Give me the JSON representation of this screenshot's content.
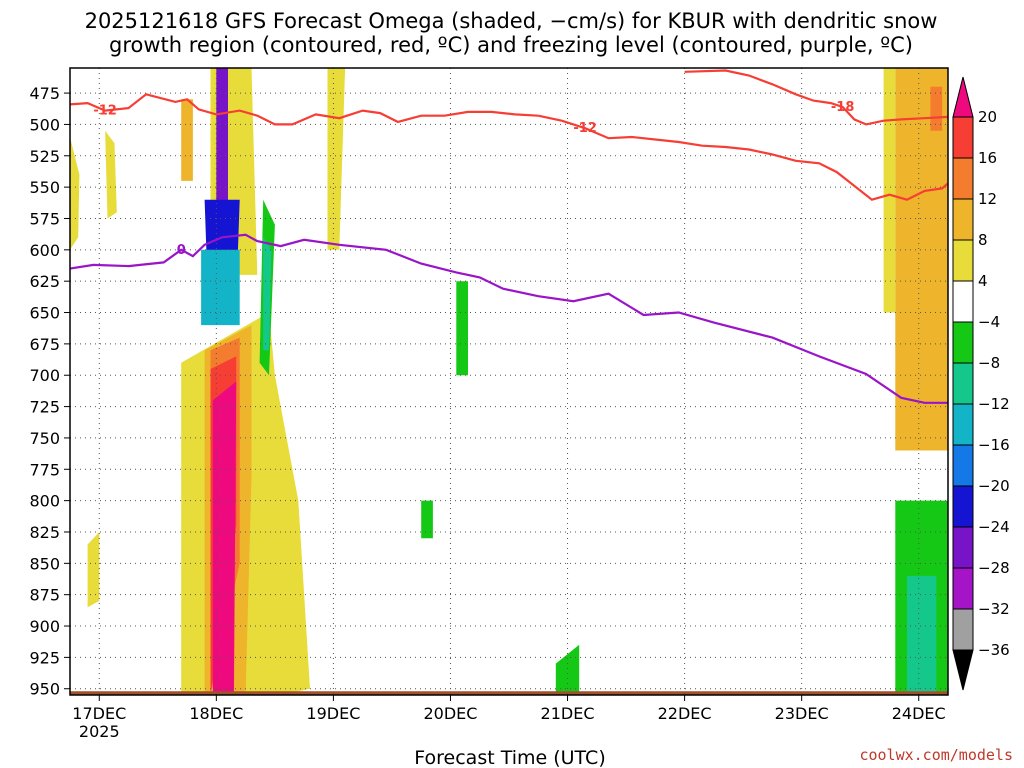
{
  "chart_data": {
    "type": "heatmap",
    "title_lines": [
      "2025121618 GFS Forecast Omega (shaded, −cm/s) for KBUR with dendritic snow",
      "growth region (contoured, red, ºC) and freezing level (contoured, purple, ºC)"
    ],
    "xlabel": "Forecast Time (UTC)",
    "credit": "coolwx.com/models",
    "x_ticks": [
      {
        "x": 0.25,
        "label": "17DEC",
        "sub": "2025"
      },
      {
        "x": 1.25,
        "label": "18DEC"
      },
      {
        "x": 2.25,
        "label": "19DEC"
      },
      {
        "x": 3.25,
        "label": "20DEC"
      },
      {
        "x": 4.25,
        "label": "21DEC"
      },
      {
        "x": 5.25,
        "label": "22DEC"
      },
      {
        "x": 6.25,
        "label": "23DEC"
      },
      {
        "x": 7.25,
        "label": "24DEC"
      }
    ],
    "xlim": [
      0,
      7.5
    ],
    "y_ticks": [
      475,
      500,
      525,
      550,
      575,
      600,
      625,
      650,
      675,
      700,
      725,
      750,
      775,
      800,
      825,
      850,
      875,
      900,
      925,
      950
    ],
    "ylim": [
      455,
      955
    ],
    "grid": true,
    "colorbar": {
      "ticks": [
        20,
        16,
        12,
        8,
        4,
        -4,
        -8,
        -12,
        -16,
        -20,
        -24,
        -28,
        -32,
        -36
      ],
      "bins": [
        {
          "color": "#ee0a7e"
        },
        {
          "color": "#f63e34"
        },
        {
          "color": "#f47c2e"
        },
        {
          "color": "#eeb42c"
        },
        {
          "color": "#e8dc3a"
        },
        {
          "color": "#ffffff"
        },
        {
          "color": "#16c816"
        },
        {
          "color": "#14c88c"
        },
        {
          "color": "#14b4c8"
        },
        {
          "color": "#1478e6"
        },
        {
          "color": "#1414d2"
        },
        {
          "color": "#7814c8"
        },
        {
          "color": "#a614c8"
        },
        {
          "color": "#a0a0a0"
        }
      ]
    },
    "freezing_level": {
      "color": "#9a14c8",
      "label": "0",
      "x": [
        0,
        0.2,
        0.5,
        0.8,
        0.95,
        1.05,
        1.15,
        1.3,
        1.5,
        1.6,
        1.8,
        2.0,
        2.3,
        2.7,
        3.0,
        3.3,
        3.5,
        3.7,
        4.0,
        4.3,
        4.6,
        4.9,
        5.2,
        5.5,
        6.0,
        6.4,
        6.8,
        7.1,
        7.3,
        7.5
      ],
      "y": [
        615,
        612,
        613,
        610,
        600,
        605,
        596,
        590,
        588,
        593,
        597,
        592,
        596,
        600,
        611,
        618,
        622,
        631,
        637,
        641,
        635,
        652,
        650,
        658,
        670,
        685,
        699,
        718,
        722,
        722
      ]
    },
    "dendritic_contours": [
      {
        "label": "-12",
        "color": "#f63e34",
        "x": [
          0,
          0.15,
          0.3,
          0.5,
          0.65,
          0.9,
          1.0,
          1.1,
          1.25,
          1.45,
          1.6,
          1.75,
          1.9,
          2.1,
          2.3,
          2.5,
          2.65,
          2.8,
          3.0,
          3.2,
          3.4,
          3.6,
          3.8,
          4.0
        ],
        "y": [
          484,
          483,
          489,
          487,
          476,
          482,
          480,
          488,
          492,
          489,
          493,
          500,
          500,
          492,
          495,
          489,
          491,
          498,
          493,
          493,
          490,
          490,
          492,
          493
        ]
      },
      {
        "label": "-12",
        "color": "#f63e34",
        "x": [
          4.0,
          4.2,
          4.4,
          4.6,
          4.8,
          5.0,
          5.2,
          5.4,
          5.6,
          5.8,
          6.0,
          6.2,
          6.4,
          6.55,
          6.7,
          6.85,
          7.0,
          7.15,
          7.3,
          7.45,
          7.5
        ],
        "y": [
          493,
          497,
          503,
          511,
          510,
          512,
          514,
          517,
          518,
          520,
          524,
          529,
          531,
          538,
          549,
          560,
          556,
          560,
          553,
          551,
          547
        ]
      },
      {
        "label": "-18",
        "color": "#f63e34",
        "x": [
          5.25,
          5.6,
          5.8,
          6.0,
          6.2,
          6.35,
          6.5,
          6.6,
          6.7,
          6.8,
          6.95,
          7.1,
          7.3,
          7.5
        ],
        "y": [
          458,
          457,
          461,
          468,
          476,
          481,
          483,
          486,
          496,
          500,
          497,
          496,
          495,
          494
        ]
      }
    ],
    "omega_regions": [
      {
        "color": "#e8dc3a",
        "x": [
          0.0,
          0.08,
          0.07,
          0.0
        ],
        "y": [
          510,
          540,
          590,
          600
        ]
      },
      {
        "color": "#e8dc3a",
        "x": [
          0.3,
          0.38,
          0.4,
          0.32
        ],
        "y": [
          505,
          515,
          570,
          575
        ]
      },
      {
        "color": "#e8dc3a",
        "x": [
          0.15,
          0.25,
          0.25,
          0.15
        ],
        "y": [
          835,
          825,
          880,
          885
        ]
      },
      {
        "color": "#e8dc3a",
        "x": [
          1.2,
          1.55,
          1.6,
          1.2
        ],
        "y": [
          455,
          455,
          620,
          620
        ]
      },
      {
        "color": "#eeb42c",
        "x": [
          0.95,
          1.05,
          1.05,
          0.95
        ],
        "y": [
          480,
          480,
          545,
          545
        ]
      },
      {
        "color": "#e8dc3a",
        "x": [
          2.2,
          2.35,
          2.3,
          2.2
        ],
        "y": [
          455,
          455,
          600,
          600
        ]
      },
      {
        "color": "#e8dc3a",
        "x": [
          0.95,
          1.7,
          1.75,
          1.95,
          2.05,
          1.8,
          1.5,
          0.95
        ],
        "y": [
          690,
          650,
          700,
          800,
          950,
          955,
          955,
          955
        ]
      },
      {
        "color": "#eeb42c",
        "x": [
          1.15,
          1.55,
          1.55,
          1.5,
          1.15
        ],
        "y": [
          680,
          660,
          780,
          955,
          955
        ]
      },
      {
        "color": "#f47c2e",
        "x": [
          1.2,
          1.45,
          1.45,
          1.2
        ],
        "y": [
          680,
          670,
          850,
          955
        ]
      },
      {
        "color": "#f63e34",
        "x": [
          1.2,
          1.42,
          1.42,
          1.2
        ],
        "y": [
          695,
          685,
          820,
          955
        ]
      },
      {
        "color": "#ee0a7e",
        "x": [
          1.22,
          1.42,
          1.4,
          1.22
        ],
        "y": [
          720,
          705,
          955,
          955
        ]
      },
      {
        "color": "#7814c8",
        "x": [
          1.25,
          1.35,
          1.35,
          1.25
        ],
        "y": [
          455,
          455,
          565,
          575
        ]
      },
      {
        "color": "#1414d2",
        "x": [
          1.15,
          1.45,
          1.42,
          1.18
        ],
        "y": [
          560,
          560,
          640,
          640
        ]
      },
      {
        "color": "#14b4c8",
        "x": [
          1.12,
          1.45,
          1.45,
          1.12
        ],
        "y": [
          600,
          600,
          660,
          660
        ]
      },
      {
        "color": "#16c816",
        "x": [
          1.65,
          1.75,
          1.7,
          1.62
        ],
        "y": [
          560,
          580,
          700,
          690
        ]
      },
      {
        "color": "#14c88c",
        "x": [
          1.65,
          1.72,
          1.7,
          1.65
        ],
        "y": [
          590,
          600,
          680,
          680
        ]
      },
      {
        "color": "#16c816",
        "x": [
          3.3,
          3.4,
          3.4,
          3.3
        ],
        "y": [
          625,
          625,
          700,
          700
        ]
      },
      {
        "color": "#16c816",
        "x": [
          4.15,
          4.35,
          4.35,
          4.15
        ],
        "y": [
          930,
          915,
          955,
          955
        ]
      },
      {
        "color": "#16c816",
        "x": [
          3.0,
          3.1,
          3.1,
          3.0
        ],
        "y": [
          800,
          800,
          830,
          830
        ]
      },
      {
        "color": "#eeb42c",
        "x": [
          7.05,
          7.5,
          7.5,
          7.05
        ],
        "y": [
          455,
          455,
          760,
          760
        ]
      },
      {
        "color": "#e8dc3a",
        "x": [
          6.95,
          7.05,
          7.05,
          6.95
        ],
        "y": [
          455,
          455,
          650,
          650
        ]
      },
      {
        "color": "#f47c2e",
        "x": [
          7.35,
          7.45,
          7.45,
          7.35
        ],
        "y": [
          470,
          470,
          505,
          505
        ]
      },
      {
        "color": "#16c816",
        "x": [
          7.05,
          7.5,
          7.5,
          7.05
        ],
        "y": [
          800,
          800,
          955,
          955
        ]
      },
      {
        "color": "#14c88c",
        "x": [
          7.15,
          7.4,
          7.4,
          7.15
        ],
        "y": [
          860,
          860,
          955,
          955
        ]
      }
    ],
    "surface": {
      "color": "#a0522d",
      "level": 952
    }
  }
}
